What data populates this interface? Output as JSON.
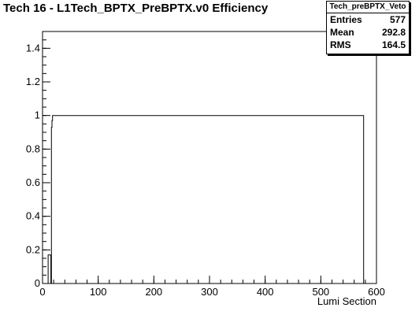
{
  "title": "Tech 16 - L1Tech_BPTX_PreBPTX.v0 Efficiency",
  "stats": {
    "name": "Tech_preBPTX_Veto",
    "entries_label": "Entries",
    "entries_value": "577",
    "mean_label": "Mean",
    "mean_value": "292.8",
    "rms_label": "RMS",
    "rms_value": "164.5"
  },
  "chart_data": {
    "type": "line",
    "title": "Tech 16 - L1Tech_BPTX_PreBPTX.v0 Efficiency",
    "xlabel": "Lumi Section",
    "ylabel": "",
    "xlim": [
      0,
      600
    ],
    "ylim": [
      0,
      1.5
    ],
    "xticks": [
      0,
      100,
      200,
      300,
      400,
      500,
      600
    ],
    "yticks": [
      0,
      0.2,
      0.4,
      0.6,
      0.8,
      1,
      1.2,
      1.4
    ],
    "xtick_labels": [
      "0",
      "100",
      "200",
      "300",
      "400",
      "500",
      "600"
    ],
    "ytick_labels": [
      "0",
      "0.2",
      "0.4",
      "0.6",
      "0.8",
      "1",
      "1.2",
      "1.4"
    ],
    "grid": false,
    "series": [
      {
        "x": [
          0,
          10,
          10,
          15,
          15,
          16,
          16,
          17,
          17,
          18,
          18,
          577,
          577,
          600
        ],
        "y": [
          0,
          0,
          0.17,
          0.17,
          0,
          0,
          0.93,
          0.93,
          0.97,
          0.97,
          1,
          1,
          0,
          0
        ]
      }
    ],
    "color": "#000000"
  }
}
